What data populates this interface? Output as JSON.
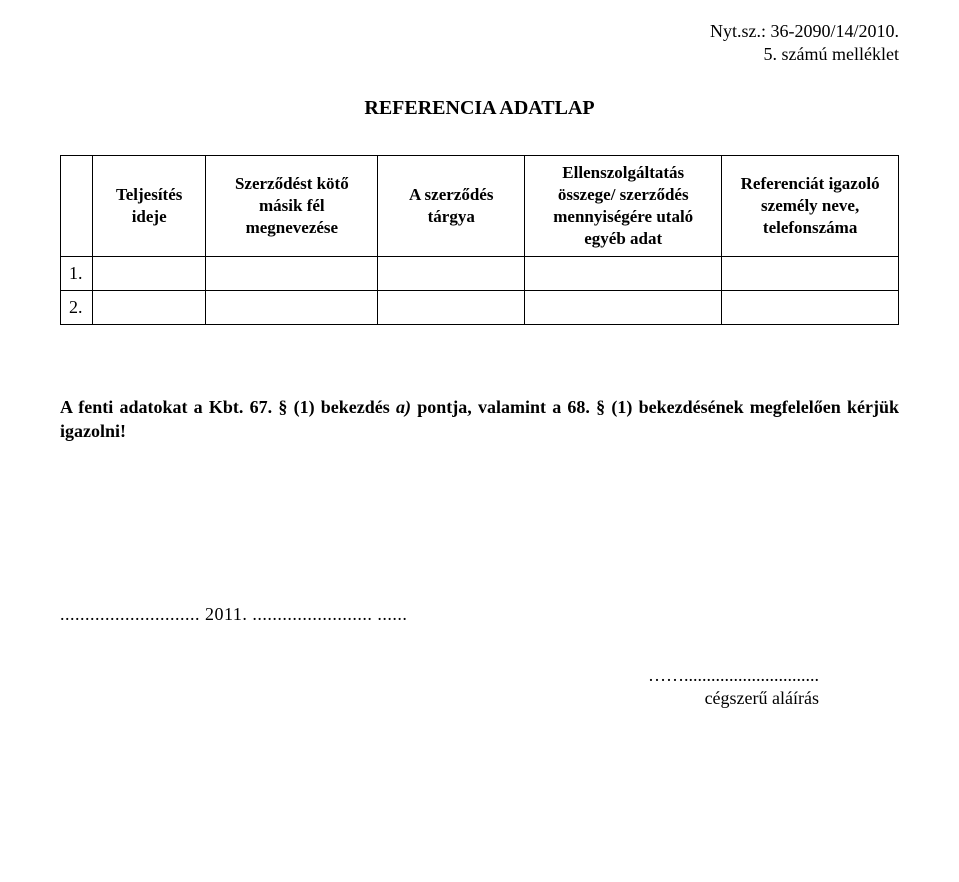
{
  "header": {
    "ref_number": "Nyt.sz.: 36-2090/14/2010.",
    "attachment": "5. számú melléklet"
  },
  "title": "REFERENCIA ADATLAP",
  "table": {
    "columns": [
      "",
      "Teljesítés ideje",
      "Szerződést kötő másik fél megnevezése",
      "A szerződés tárgya",
      "Ellenszolgáltatás összege/ szerződés mennyiségére utaló egyéb adat",
      "Referenciát igazoló személy neve, telefonszáma"
    ],
    "rows": [
      {
        "num": "1."
      },
      {
        "num": "2."
      }
    ]
  },
  "note": {
    "prefix": "A fenti adatokat a Kbt. 67. § (1) bekezdés ",
    "italic": "a)",
    "suffix": " pontja, valamint a 68. § (1) bekezdésének megfelelően kérjük igazolni!"
  },
  "date_line": "............................ 2011. ........................ ......",
  "signature": {
    "dots": "……..............................",
    "label": "cégszerű aláírás"
  }
}
